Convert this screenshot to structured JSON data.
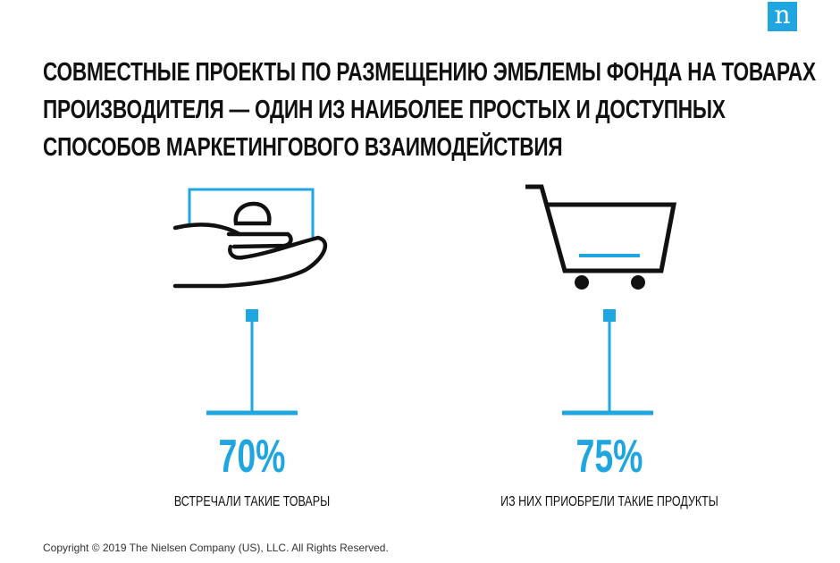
{
  "logo": {
    "letter": "n"
  },
  "title": {
    "lines": [
      "СОВМЕСТНЫЕ ПРОЕКТЫ ПО РАЗМЕЩЕНИЮ ЭМБЛЕМЫ ФОНДА НА ТОВАРАХ",
      "ПРОИЗВОДИТЕЛЯ — ОДИН ИЗ НАИБОЛЕЕ ПРОСТЫХ И ДОСТУПНЫХ",
      "СПОСОБОВ МАРКЕТИНГОВОГО ВЗАИМОДЕЙСТВИЯ"
    ]
  },
  "stats": [
    {
      "value": "70%",
      "caption": "ВСТРЕЧАЛИ ТАКИЕ ТОВАРЫ",
      "icon": "hand-coin-icon"
    },
    {
      "value": "75%",
      "caption": "ИЗ НИХ ПРИОБРЕЛИ ТАКИЕ ПРОДУКТЫ",
      "icon": "shopping-cart-icon"
    }
  ],
  "footer": {
    "copyright": "Copyright © 2019 The Nielsen Company (US), LLC. All Rights Reserved."
  },
  "colors": {
    "accent": "#1fa6e0",
    "text": "#111111"
  }
}
